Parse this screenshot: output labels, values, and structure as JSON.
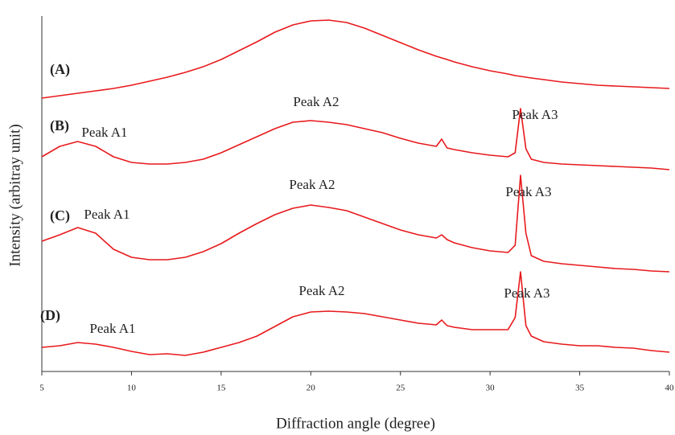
{
  "chart_data": {
    "type": "line",
    "xlabel": "Diffraction angle (degree)",
    "ylabel": "Intensity (arbitray unit)",
    "x": [
      5,
      6,
      7,
      8,
      9,
      10,
      11,
      12,
      13,
      14,
      15,
      16,
      17,
      18,
      19,
      20,
      21,
      22,
      23,
      24,
      25,
      26,
      27,
      27.3,
      27.6,
      28,
      29,
      30,
      31,
      31.4,
      31.7,
      32,
      32.3,
      33,
      34,
      35,
      36,
      37,
      38,
      39,
      40
    ],
    "xlim": [
      5,
      40
    ],
    "xticks": [
      5,
      10,
      15,
      20,
      25,
      30,
      35,
      40
    ],
    "ylim": [
      0,
      442
    ],
    "series": [
      {
        "name": "(A)",
        "color": "#e8191c",
        "values": [
          340,
          343,
          346,
          349,
          352,
          356,
          361,
          366,
          372,
          379,
          388,
          399,
          410,
          422,
          431,
          436,
          437,
          434,
          427,
          418,
          409,
          400,
          392,
          390,
          388,
          385,
          379,
          374,
          370,
          368,
          367,
          366,
          365,
          363,
          360,
          358,
          356,
          355,
          354,
          353,
          352
        ]
      },
      {
        "name": "(B)",
        "color": "#e8191c",
        "values": [
          267,
          280,
          286,
          280,
          267,
          260,
          258,
          258,
          260,
          264,
          272,
          282,
          292,
          302,
          310,
          312,
          310,
          307,
          302,
          297,
          290,
          284,
          280,
          289,
          278,
          276,
          272,
          269,
          267,
          272,
          327,
          277,
          264,
          260,
          258,
          257,
          256,
          255,
          254,
          253,
          251
        ]
      },
      {
        "name": "(C)",
        "color": "#e8191c",
        "values": [
          162,
          170,
          179,
          172,
          152,
          142,
          139,
          139,
          142,
          149,
          159,
          172,
          184,
          195,
          203,
          207,
          204,
          200,
          192,
          184,
          176,
          170,
          166,
          170,
          164,
          160,
          154,
          150,
          148,
          157,
          244,
          172,
          144,
          137,
          134,
          132,
          130,
          128,
          127,
          125,
          124
        ]
      },
      {
        "name": "(D)",
        "color": "#e8191c",
        "values": [
          30,
          32,
          36,
          34,
          30,
          25,
          21,
          22,
          20,
          24,
          30,
          36,
          44,
          56,
          68,
          74,
          75,
          74,
          72,
          68,
          64,
          60,
          58,
          64,
          57,
          55,
          52,
          52,
          52,
          67,
          124,
          57,
          44,
          37,
          34,
          32,
          32,
          30,
          29,
          26,
          24
        ]
      }
    ],
    "annotations": [
      "Peak A1",
      "Peak A2",
      "Peak A3",
      "Peak A1",
      "Peak A2",
      "Peak A3",
      "Peak A1",
      "Peak A2",
      "Peak A3"
    ]
  }
}
